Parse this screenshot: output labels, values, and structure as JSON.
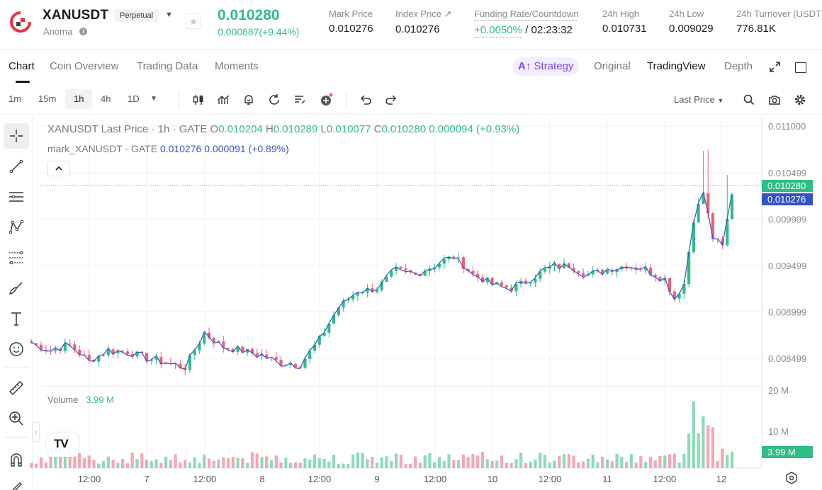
{
  "header": {
    "symbol": "XANUSDT",
    "contract_type": "Perpetual",
    "project_name": "Anoma",
    "last_price": "0.010280",
    "price_change": "0.000887(+9.44%)",
    "stats": [
      {
        "label": "Mark Price",
        "value": "0.010276"
      },
      {
        "label": "Index Price ↗",
        "value": "0.010276"
      },
      {
        "label": "Funding Rate/Countdown",
        "value_green": "+0.0050%",
        "value": " / 02:23:32"
      },
      {
        "label": "24h High",
        "value": "0.010731"
      },
      {
        "label": "24h Low",
        "value": "0.009029"
      },
      {
        "label": "24h Turnover (USDT)",
        "value": "776.81K"
      }
    ]
  },
  "tabs": [
    "Chart",
    "Coin Overview",
    "Trading Data",
    "Moments"
  ],
  "active_tab": "Chart",
  "strategy_label": "Strategy",
  "view_options": [
    "Original",
    "TradingView",
    "Depth"
  ],
  "active_view": "TradingView",
  "toolbar": {
    "intervals": [
      "1m",
      "15m",
      "1h",
      "4h",
      "1D"
    ],
    "active_interval": "1h",
    "price_source": "Last Price"
  },
  "legend": {
    "main_title": "XANUSDT Last Price · 1h · GATE",
    "o_label": "O",
    "o_value": "0.010204",
    "h_label": "H",
    "h_value": "0.010289",
    "l_label": "L",
    "l_value": "0.010077",
    "c_label": "C",
    "c_value": "0.010280",
    "change": "0.000094 (+0.93%)",
    "mark_title": "mark_XANUSDT · GATE",
    "mark_value": "0.010276",
    "mark_change": "0.000091 (+0.89%)"
  },
  "volume_legend": {
    "label": "Volume",
    "value": "3.99 M"
  },
  "price_axis": [
    "0.011000",
    "0.010499",
    "0.009999",
    "0.009499",
    "0.008999",
    "0.008499"
  ],
  "volume_axis": [
    "20 M",
    "10 M"
  ],
  "price_tags": {
    "last": "0.010280",
    "mark": "0.010276",
    "volume": "3.99 M"
  },
  "time_axis": [
    "12:00",
    "7",
    "12:00",
    "8",
    "12:00",
    "9",
    "12:00",
    "10",
    "12:00",
    "11",
    "12:00",
    "12"
  ],
  "colors": {
    "up": "#2fbd85",
    "down": "#ef5f78",
    "mark_line": "#3452c7",
    "accent": "#7b46f0"
  },
  "chart_data": {
    "type": "candlestick",
    "interval": "1h",
    "series": [
      {
        "name": "XANUSDT Last Price"
      },
      {
        "name": "mark_XANUSDT"
      },
      {
        "name": "Volume"
      }
    ],
    "keypoints_close": [
      [
        "6 00:00",
        0.00866
      ],
      [
        "6 04:00",
        0.00858
      ],
      [
        "6 08:00",
        0.00864
      ],
      [
        "6 12:00",
        0.00847
      ],
      [
        "6 16:00",
        0.00858
      ],
      [
        "6 20:00",
        0.00857
      ],
      [
        "7 00:00",
        0.0085
      ],
      [
        "7 04:00",
        0.00845
      ],
      [
        "7 08:00",
        0.0084
      ],
      [
        "7 12:00",
        0.00877
      ],
      [
        "7 16:00",
        0.00862
      ],
      [
        "7 20:00",
        0.00858
      ],
      [
        "8 00:00",
        0.00853
      ],
      [
        "8 04:00",
        0.00845
      ],
      [
        "8 08:00",
        0.00843
      ],
      [
        "8 12:00",
        0.0087
      ],
      [
        "8 16:00",
        0.00905
      ],
      [
        "8 20:00",
        0.00922
      ],
      [
        "9 00:00",
        0.00925
      ],
      [
        "9 04:00",
        0.00945
      ],
      [
        "9 08:00",
        0.0094
      ],
      [
        "9 12:00",
        0.0095
      ],
      [
        "9 16:00",
        0.0096
      ],
      [
        "9 20:00",
        0.0094
      ],
      [
        "10 00:00",
        0.0093
      ],
      [
        "10 04:00",
        0.00925
      ],
      [
        "10 08:00",
        0.00935
      ],
      [
        "10 12:00",
        0.00948
      ],
      [
        "10 16:00",
        0.0095
      ],
      [
        "10 20:00",
        0.0094
      ],
      [
        "11 00:00",
        0.00945
      ],
      [
        "11 04:00",
        0.0095
      ],
      [
        "11 08:00",
        0.00945
      ],
      [
        "11 12:00",
        0.00935
      ],
      [
        "11 14:00",
        0.00915
      ],
      [
        "11 16:00",
        0.0093
      ],
      [
        "11 18:00",
        0.01
      ],
      [
        "11 20:00",
        0.01028
      ],
      [
        "11 22:00",
        0.0098
      ],
      [
        "12 00:00",
        0.0097
      ],
      [
        "12 02:00",
        0.01028
      ]
    ],
    "y_range": [
      0.0082,
      0.0111
    ],
    "volume_range": [
      0,
      20000000
    ],
    "latest_volume": 3990000
  }
}
